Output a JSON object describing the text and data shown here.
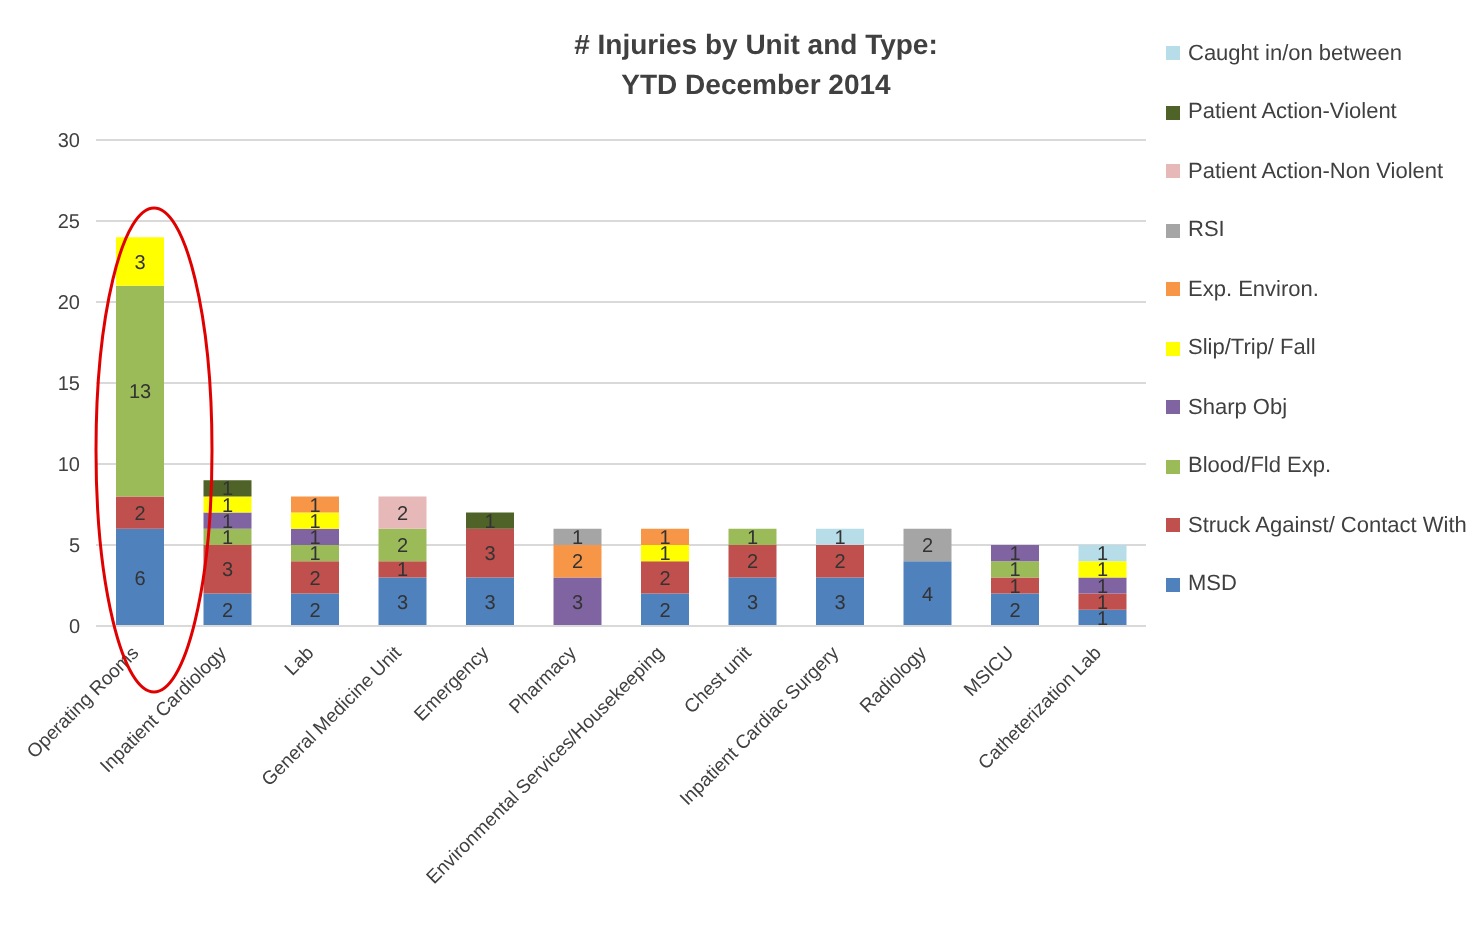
{
  "chart_data": {
    "type": "bar",
    "title": "# Injuries by Unit and Type:\nYTD December 2014",
    "categories": [
      "Operating Rooms",
      "Inpatient Cardiology",
      "Lab",
      "General Medicine Unit",
      "Emergency",
      "Pharmacy",
      "Environmental Services/Housekeeping",
      "Chest unit",
      "Inpatient Cardiac Surgery",
      "Radiology",
      "MSICU",
      "Catheterization Lab"
    ],
    "stacked": true,
    "data_labels": true,
    "grid": "y",
    "legend": "right",
    "ylim": [
      0,
      30
    ],
    "yticks": [
      0,
      5,
      10,
      15,
      20,
      25,
      30
    ],
    "series": [
      {
        "name": "MSD",
        "color": "#4f81bd",
        "values": [
          6,
          2,
          2,
          3,
          3,
          null,
          2,
          3,
          3,
          4,
          2,
          1
        ]
      },
      {
        "name": "Struck Against/ Contact With",
        "color": "#c0504d",
        "values": [
          2,
          3,
          2,
          1,
          3,
          null,
          2,
          2,
          2,
          null,
          1,
          1
        ]
      },
      {
        "name": "Blood/Fld Exp.",
        "color": "#9bbb59",
        "values": [
          13,
          1,
          1,
          2,
          null,
          null,
          null,
          1,
          null,
          null,
          1,
          null
        ]
      },
      {
        "name": "Sharp Obj",
        "color": "#8064a2",
        "values": [
          null,
          1,
          1,
          null,
          null,
          3,
          null,
          null,
          null,
          null,
          1,
          1
        ]
      },
      {
        "name": "Slip/Trip/ Fall",
        "color": "#ffff00",
        "values": [
          3,
          1,
          1,
          null,
          null,
          null,
          1,
          null,
          null,
          null,
          null,
          1
        ]
      },
      {
        "name": "Exp. Environ.",
        "color": "#f79646",
        "values": [
          null,
          null,
          1,
          null,
          null,
          2,
          1,
          null,
          null,
          null,
          null,
          null
        ]
      },
      {
        "name": "RSI",
        "color": "#a5a5a5",
        "values": [
          null,
          null,
          null,
          null,
          null,
          1,
          null,
          null,
          null,
          2,
          null,
          null
        ]
      },
      {
        "name": "Patient Action-Non Violent",
        "color": "#e6b9b8",
        "values": [
          null,
          null,
          null,
          2,
          null,
          null,
          null,
          null,
          null,
          null,
          null,
          null
        ]
      },
      {
        "name": "Patient Action-Violent",
        "color": "#4f6228",
        "values": [
          null,
          1,
          null,
          null,
          1,
          null,
          null,
          null,
          null,
          null,
          null,
          null
        ]
      },
      {
        "name": "Caught in/on between",
        "color": "#b7dee8",
        "values": [
          null,
          null,
          null,
          null,
          null,
          null,
          null,
          null,
          1,
          null,
          null,
          1
        ]
      }
    ]
  }
}
